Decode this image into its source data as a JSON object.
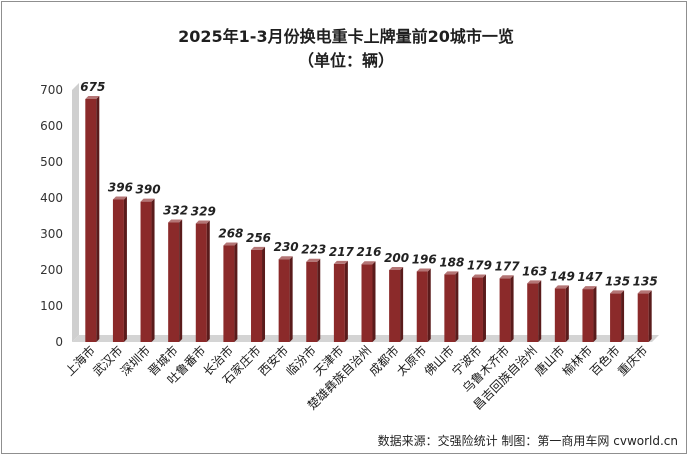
{
  "chart_data": {
    "type": "bar",
    "title": "2025年1-3月份换电重卡上牌量前20城市一览",
    "subtitle": "（单位：辆）",
    "categories": [
      "上海市",
      "武汉市",
      "深圳市",
      "晋城市",
      "吐鲁番市",
      "长治市",
      "石家庄市",
      "西安市",
      "临汾市",
      "天津市",
      "楚雄彝族自治州",
      "成都市",
      "太原市",
      "佛山市",
      "宁波市",
      "乌鲁木齐市",
      "昌吉回族自治州",
      "唐山市",
      "榆林市",
      "百色市",
      "重庆市"
    ],
    "values": [
      675,
      396,
      390,
      332,
      329,
      268,
      256,
      230,
      223,
      217,
      216,
      200,
      196,
      188,
      179,
      177,
      163,
      149,
      147,
      135,
      135
    ],
    "ylim": [
      0,
      700
    ],
    "yticks": [
      0,
      100,
      200,
      300,
      400,
      500,
      600,
      700
    ],
    "grid": false,
    "legend": "none",
    "bar_color": "#8b2a2a",
    "source_note": "数据来源：交强险统计    制图：第一商用车网 cvworld.cn"
  }
}
